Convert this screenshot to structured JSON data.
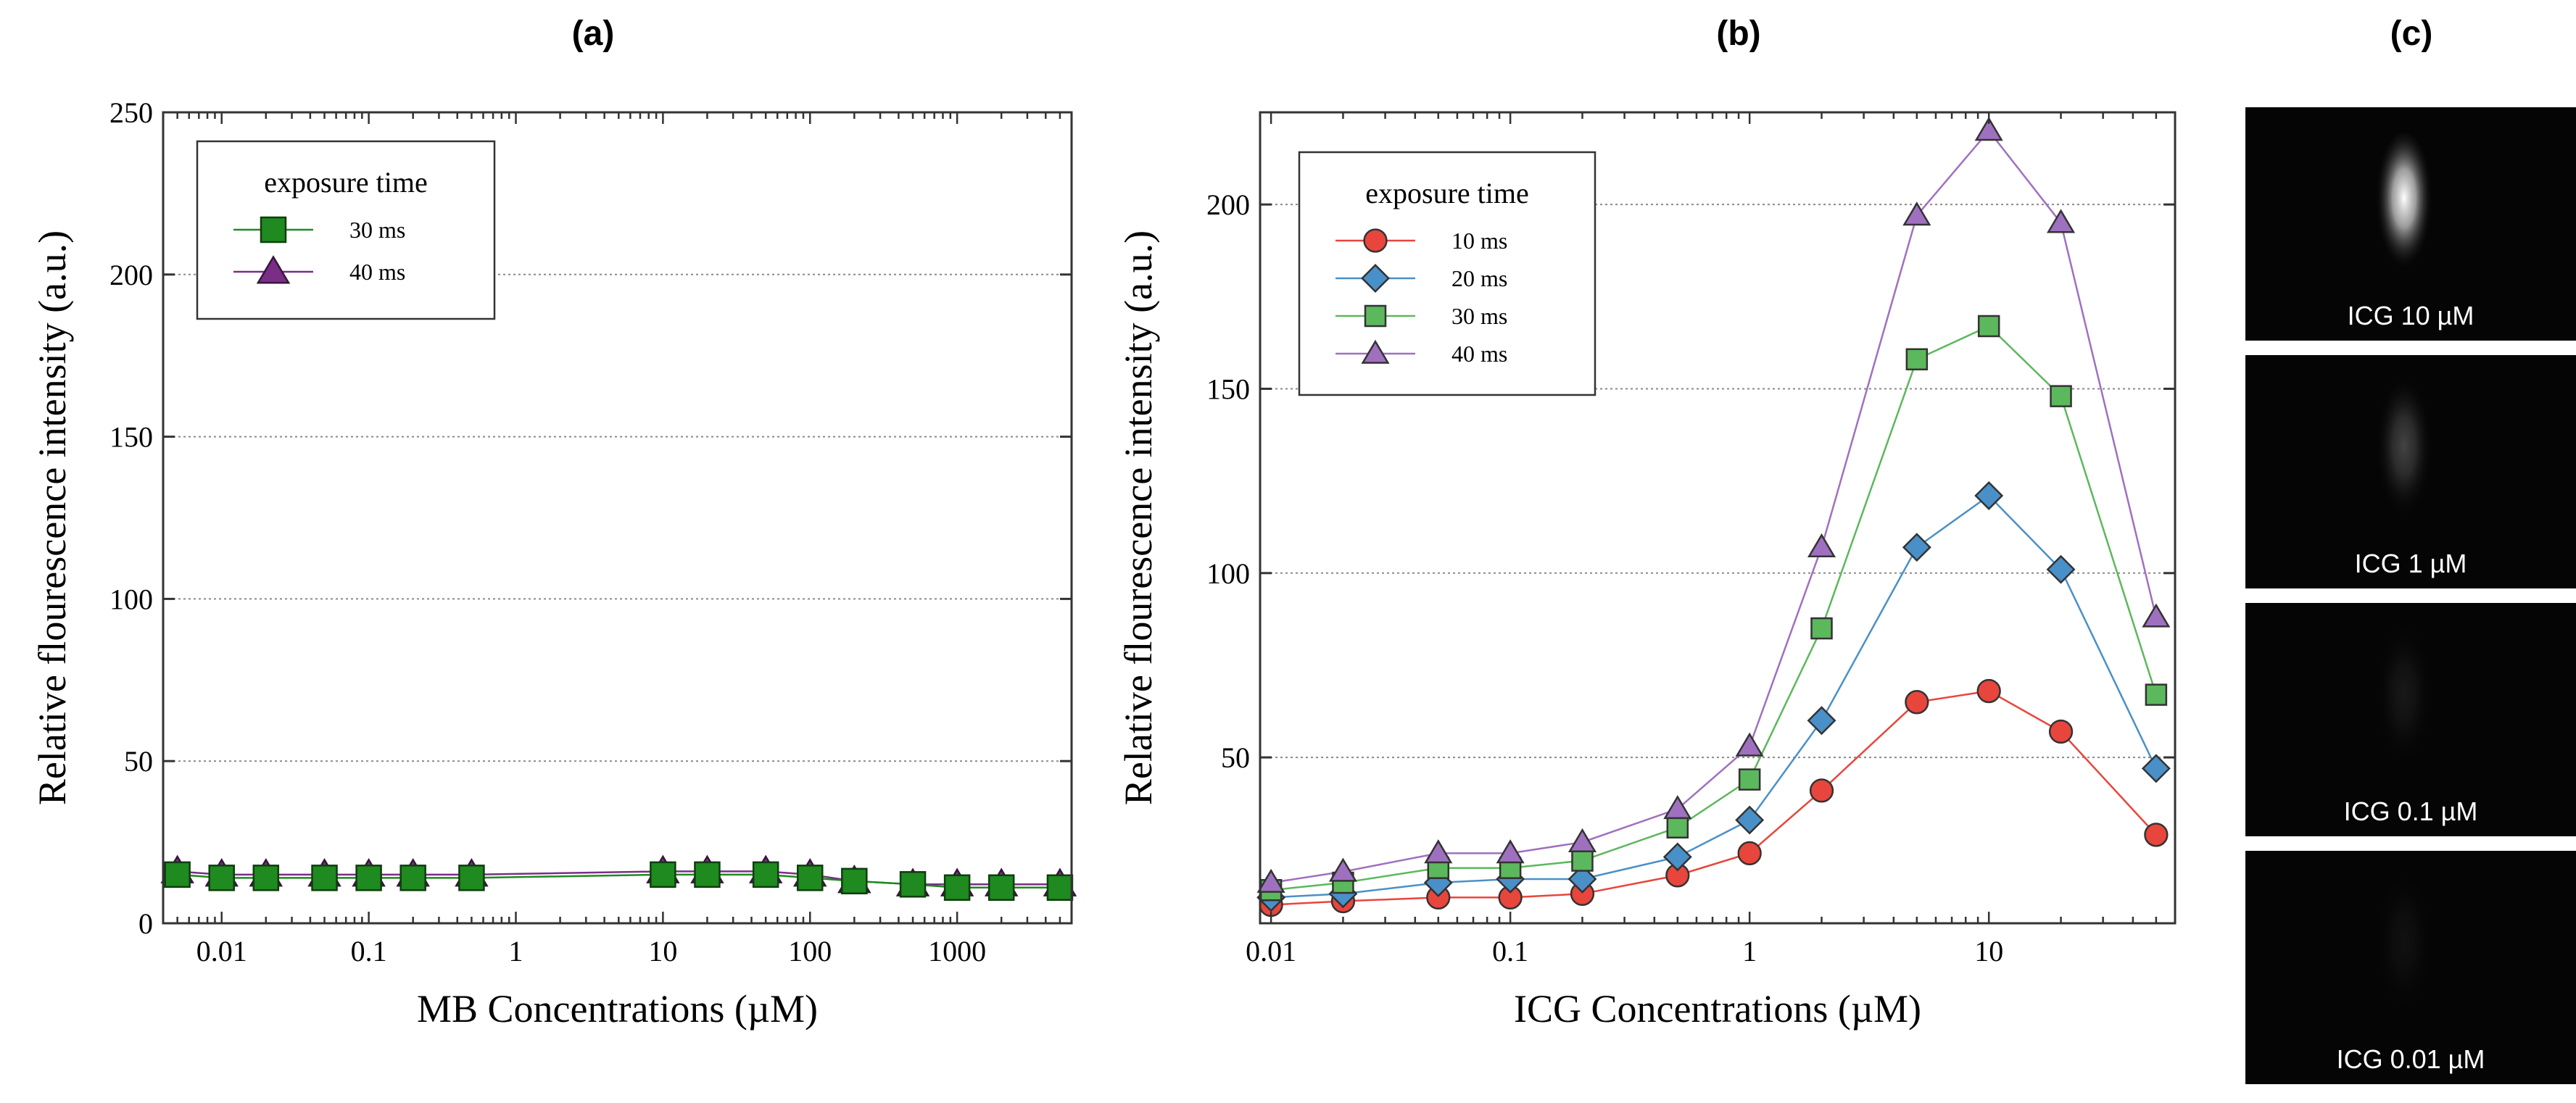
{
  "figure": {
    "panel_a_label": "(a)",
    "panel_b_label": "(b)",
    "panel_c_label": "(c)"
  },
  "chart_data": [
    {
      "type": "line",
      "panel": "(a)",
      "xlabel": "MB Concentrations (µM)",
      "ylabel": "Relative flourescence intensity (a.u.)",
      "xscale": "log",
      "xlim": [
        0.004,
        6000
      ],
      "ylim": [
        0,
        250
      ],
      "xticks": [
        0.01,
        0.1,
        1,
        10,
        100,
        1000
      ],
      "xtick_labels": [
        "0.01",
        "0.1",
        "1",
        "10",
        "100",
        "1000"
      ],
      "yticks": [
        0,
        50,
        100,
        150,
        200,
        250
      ],
      "ytick_labels": [
        "0",
        "50",
        "100",
        "150",
        "200",
        "250"
      ],
      "grid": "horizontal dotted",
      "legend": {
        "title": "exposure time",
        "placement": "top-left"
      },
      "series": [
        {
          "name": "40 ms",
          "color": "#7a2e86",
          "marker": "triangle",
          "x": [
            0.005,
            0.01,
            0.02,
            0.05,
            0.1,
            0.2,
            0.5,
            10,
            20,
            50,
            100,
            200,
            500,
            1000,
            2000,
            5000
          ],
          "y": [
            16,
            15,
            15,
            15,
            15,
            15,
            15,
            16,
            16,
            16,
            15,
            13,
            12,
            12,
            12,
            12
          ]
        },
        {
          "name": "30 ms",
          "color": "#1f8a1f",
          "marker": "square",
          "x": [
            0.005,
            0.01,
            0.02,
            0.05,
            0.1,
            0.2,
            0.5,
            10,
            20,
            50,
            100,
            200,
            500,
            1000,
            2000,
            5000
          ],
          "y": [
            15,
            14,
            14,
            14,
            14,
            14,
            14,
            15,
            15,
            15,
            14,
            13,
            12,
            11,
            11,
            11
          ]
        }
      ]
    },
    {
      "type": "line",
      "panel": "(b)",
      "xlabel": "ICG Concentrations (µM)",
      "ylabel": "Relative flourescence intensity (a.u.)",
      "xscale": "log",
      "xlim": [
        0.009,
        60
      ],
      "ylim": [
        5,
        225
      ],
      "xticks": [
        0.01,
        0.1,
        1,
        10
      ],
      "xtick_labels": [
        "0.01",
        "0.1",
        "1",
        "10"
      ],
      "yticks": [
        50,
        100,
        150,
        200
      ],
      "ytick_labels": [
        "50",
        "100",
        "150",
        "200"
      ],
      "grid": "horizontal dotted",
      "legend": {
        "title": "exposure time",
        "placement": "top-left"
      },
      "series": [
        {
          "name": "10 ms",
          "color": "#e8463c",
          "marker": "circle",
          "x": [
            0.01,
            0.02,
            0.05,
            0.1,
            0.2,
            0.5,
            1,
            2,
            5,
            10,
            20,
            50
          ],
          "y": [
            10,
            11,
            12,
            12,
            13,
            18,
            24,
            41,
            65,
            68,
            57,
            29
          ]
        },
        {
          "name": "20 ms",
          "color": "#4a90c8",
          "marker": "diamond",
          "x": [
            0.01,
            0.02,
            0.05,
            0.1,
            0.2,
            0.5,
            1,
            2,
            5,
            10,
            20,
            50
          ],
          "y": [
            12,
            13,
            16,
            17,
            17,
            23,
            33,
            60,
            107,
            121,
            101,
            47
          ]
        },
        {
          "name": "30 ms",
          "color": "#5cb85c",
          "marker": "square",
          "x": [
            0.01,
            0.02,
            0.05,
            0.1,
            0.2,
            0.5,
            1,
            2,
            5,
            10,
            20,
            50
          ],
          "y": [
            14,
            16,
            20,
            20,
            22,
            31,
            44,
            85,
            158,
            167,
            148,
            67
          ]
        },
        {
          "name": "40 ms",
          "color": "#a070c0",
          "marker": "triangle",
          "x": [
            0.01,
            0.02,
            0.05,
            0.1,
            0.2,
            0.5,
            1,
            2,
            5,
            10,
            20,
            50
          ],
          "y": [
            16,
            19,
            24,
            24,
            27,
            36,
            53,
            107,
            197,
            220,
            195,
            88
          ]
        }
      ]
    }
  ],
  "images": [
    {
      "caption": "ICG 10 µM",
      "glow": 1.0
    },
    {
      "caption": "ICG 1 µM",
      "glow": 0.25
    },
    {
      "caption": "ICG 0.1 µM",
      "glow": 0.08
    },
    {
      "caption": "ICG 0.01 µM",
      "glow": 0.05
    }
  ]
}
